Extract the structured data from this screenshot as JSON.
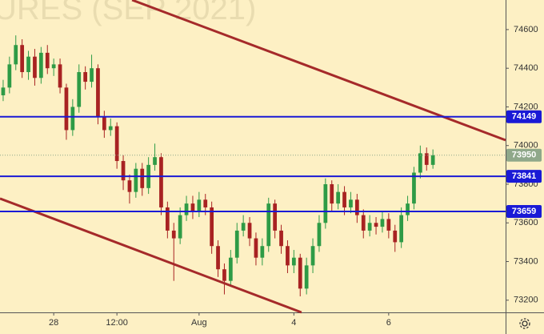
{
  "chart_data": {
    "type": "candlestick",
    "watermark": "URES (SEP 2021)",
    "x": [
      0,
      1,
      2,
      3,
      4,
      5,
      6,
      7,
      8,
      9,
      10,
      11,
      12,
      13,
      14,
      15,
      16,
      17,
      18,
      19,
      20,
      21,
      22,
      23,
      24,
      25,
      26,
      27,
      28,
      29,
      30,
      31,
      32,
      33,
      34,
      35,
      36,
      37,
      38,
      39,
      40,
      41,
      42,
      43,
      44,
      45,
      46,
      47,
      48,
      49,
      50,
      51,
      52,
      53,
      54,
      55,
      56,
      57,
      58,
      59,
      60,
      61,
      62,
      63,
      64,
      65,
      66,
      67,
      68
    ],
    "open": [
      74260,
      74300,
      74420,
      74520,
      74380,
      74460,
      74350,
      74480,
      74400,
      74420,
      74300,
      74080,
      74200,
      74380,
      74330,
      74400,
      74150,
      74080,
      74100,
      73920,
      73820,
      73760,
      73880,
      73780,
      73900,
      73940,
      73680,
      73560,
      73520,
      73640,
      73700,
      73660,
      73720,
      73680,
      73480,
      73360,
      73300,
      73420,
      73560,
      73600,
      73520,
      73420,
      73480,
      73700,
      73560,
      73480,
      73380,
      73420,
      73260,
      73380,
      73480,
      73600,
      73800,
      73700,
      73760,
      73680,
      73720,
      73640,
      73560,
      73600,
      73580,
      73620,
      73560,
      73500,
      73640,
      73700,
      73860,
      73960,
      73900
    ],
    "high": [
      74340,
      74460,
      74570,
      74550,
      74490,
      74500,
      74510,
      74520,
      74450,
      74450,
      74320,
      74240,
      74420,
      74410,
      74470,
      74420,
      74180,
      74140,
      74120,
      73950,
      73850,
      73910,
      73910,
      73940,
      74010,
      73960,
      73710,
      73600,
      73680,
      73740,
      73740,
      73760,
      73750,
      73710,
      73510,
      73390,
      73460,
      73600,
      73640,
      73630,
      73550,
      73520,
      73730,
      73720,
      73590,
      73510,
      73460,
      73440,
      73420,
      73520,
      73640,
      73830,
      73820,
      73800,
      73790,
      73760,
      73750,
      73670,
      73640,
      73630,
      73660,
      73650,
      73590,
      73680,
      73740,
      73890,
      74000,
      73990,
      73980
    ],
    "low": [
      74230,
      74270,
      74390,
      74350,
      74340,
      74310,
      74320,
      74370,
      74360,
      74270,
      74030,
      74050,
      74170,
      74290,
      74300,
      74110,
      74040,
      74050,
      73880,
      73770,
      73700,
      73730,
      73740,
      73750,
      73870,
      73640,
      73520,
      73300,
      73490,
      73610,
      73620,
      73630,
      73640,
      73440,
      73320,
      73230,
      73270,
      73390,
      73530,
      73480,
      73380,
      73380,
      73450,
      73520,
      73440,
      73340,
      73340,
      73220,
      73230,
      73340,
      73450,
      73570,
      73660,
      73670,
      73640,
      73650,
      73600,
      73520,
      73530,
      73540,
      73550,
      73520,
      73450,
      73470,
      73610,
      73670,
      73830,
      73870,
      73880
    ],
    "close": [
      74300,
      74420,
      74520,
      74380,
      74460,
      74350,
      74480,
      74400,
      74420,
      74300,
      74080,
      74200,
      74380,
      74330,
      74400,
      74150,
      74080,
      74100,
      73920,
      73820,
      73760,
      73880,
      73780,
      73900,
      73940,
      73680,
      73560,
      73520,
      73640,
      73700,
      73660,
      73720,
      73680,
      73480,
      73360,
      73300,
      73420,
      73560,
      73600,
      73520,
      73420,
      73480,
      73700,
      73560,
      73480,
      73380,
      73420,
      73260,
      73380,
      73480,
      73600,
      73800,
      73700,
      73760,
      73680,
      73720,
      73640,
      73560,
      73600,
      73580,
      73620,
      73560,
      73500,
      73640,
      73700,
      73860,
      73960,
      73900,
      73950
    ],
    "up_color": "#2e9b46",
    "down_color": "#a82222",
    "xlim": [
      -0.5,
      79.5
    ],
    "ylim": [
      73137,
      74753
    ],
    "yticks": [
      73200,
      73400,
      73600,
      73800,
      74000,
      74200,
      74400,
      74600
    ],
    "xticks": [
      {
        "value": 8,
        "label": "28"
      },
      {
        "value": 18,
        "label": "12:00"
      },
      {
        "value": 31,
        "label": "Aug"
      },
      {
        "value": 46,
        "label": "4"
      },
      {
        "value": 61,
        "label": "6"
      }
    ],
    "levels": [
      {
        "value": 74149,
        "color": "#1a1ad6"
      },
      {
        "value": 73841,
        "color": "#1a1ad6"
      },
      {
        "value": 73659,
        "color": "#1a1ad6"
      }
    ],
    "last_price": 73950,
    "last_price_color": "#8fa88a",
    "trendlines": [
      {
        "x": [
          20.4,
          79.5
        ],
        "y": [
          74753,
          74028
        ],
        "color": "#a52a2a"
      },
      {
        "x": [
          -0.5,
          47.2
        ],
        "y": [
          73726,
          73137
        ],
        "color": "#a52a2a"
      }
    ]
  }
}
